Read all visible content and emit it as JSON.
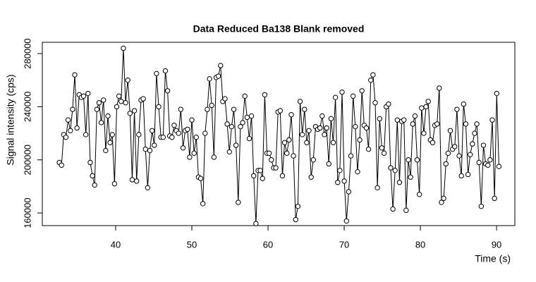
{
  "chart_data": {
    "type": "line",
    "title": "Data Reduced Ba138 Blank removed",
    "xlabel": "Time (s)",
    "ylabel": "Signal intensity (cps)",
    "color": "#000000",
    "xlim": [
      30.37,
      92.4
    ],
    "ylim": [
      150500,
      288500
    ],
    "xticks": [
      40,
      50,
      60,
      70,
      80,
      90
    ],
    "yticks": [
      160000,
      200000,
      240000,
      280000
    ],
    "x": [
      32.6,
      32.89,
      33.18,
      33.47,
      33.76,
      34.05,
      34.34,
      34.63,
      34.92,
      35.21,
      35.5,
      35.79,
      36.08,
      36.37,
      36.66,
      36.95,
      37.24,
      37.53,
      37.82,
      38.11,
      38.4,
      38.69,
      38.98,
      39.27,
      39.56,
      39.85,
      40.14,
      40.43,
      40.72,
      41.01,
      41.3,
      41.59,
      41.88,
      42.17,
      42.46,
      42.75,
      43.04,
      43.33,
      43.62,
      43.91,
      44.2,
      44.49,
      44.78,
      45.07,
      45.36,
      45.65,
      45.94,
      46.23,
      46.52,
      46.81,
      47.1,
      47.39,
      47.68,
      47.97,
      48.26,
      48.55,
      48.84,
      49.13,
      49.42,
      49.71,
      50.0,
      50.29,
      50.58,
      50.87,
      51.16,
      51.45,
      51.74,
      52.03,
      52.32,
      52.61,
      52.9,
      53.19,
      53.48,
      53.77,
      54.06,
      54.35,
      54.64,
      54.93,
      55.22,
      55.51,
      55.8,
      56.09,
      56.38,
      56.67,
      56.96,
      57.25,
      57.54,
      57.83,
      58.12,
      58.41,
      58.7,
      58.99,
      59.28,
      59.57,
      59.86,
      60.15,
      60.44,
      60.73,
      61.02,
      61.31,
      61.6,
      61.89,
      62.18,
      62.47,
      62.76,
      63.05,
      63.34,
      63.63,
      63.92,
      64.21,
      64.5,
      64.79,
      65.08,
      65.37,
      65.66,
      65.95,
      66.24,
      66.53,
      66.82,
      67.11,
      67.4,
      67.69,
      67.98,
      68.27,
      68.56,
      68.85,
      69.14,
      69.43,
      69.72,
      70.01,
      70.3,
      70.59,
      70.88,
      71.17,
      71.46,
      71.75,
      72.04,
      72.33,
      72.62,
      72.91,
      73.2,
      73.49,
      73.78,
      74.07,
      74.36,
      74.65,
      74.94,
      75.23,
      75.52,
      75.81,
      76.1,
      76.39,
      76.68,
      76.97,
      77.26,
      77.55,
      77.84,
      78.13,
      78.42,
      78.71,
      79.0,
      79.29,
      79.58,
      79.87,
      80.16,
      80.45,
      80.74,
      81.03,
      81.32,
      81.61,
      81.9,
      82.19,
      82.48,
      82.77,
      83.06,
      83.35,
      83.64,
      83.93,
      84.22,
      84.51,
      84.8,
      85.09,
      85.38,
      85.67,
      85.96,
      86.25,
      86.54,
      86.83,
      87.12,
      87.41,
      87.7,
      87.99,
      88.28,
      88.57,
      88.86,
      89.15,
      89.44,
      89.73,
      90.02,
      90.31
    ],
    "values": [
      198000,
      196000,
      219000,
      217000,
      230000,
      222000,
      238000,
      264000,
      224000,
      249000,
      247000,
      248000,
      219000,
      250000,
      198000,
      188000,
      181000,
      238000,
      243000,
      228000,
      245000,
      207000,
      233000,
      213000,
      219000,
      182000,
      240000,
      248000,
      244000,
      284000,
      243000,
      260000,
      235000,
      185000,
      237000,
      184000,
      219000,
      245000,
      246000,
      208000,
      179000,
      207000,
      222000,
      211000,
      265000,
      240000,
      217000,
      217000,
      267000,
      252000,
      218000,
      217000,
      226000,
      222000,
      220000,
      238000,
      209000,
      222000,
      223000,
      202000,
      230000,
      205000,
      217000,
      187000,
      186000,
      167000,
      220000,
      238000,
      261000,
      241000,
      202000,
      262000,
      263000,
      271000,
      244000,
      246000,
      227000,
      206000,
      225000,
      238000,
      211000,
      168000,
      225000,
      228000,
      248000,
      232000,
      216000,
      233000,
      188000,
      152000,
      192000,
      192000,
      186000,
      249000,
      205000,
      205000,
      200000,
      194000,
      194000,
      236000,
      237000,
      188000,
      213000,
      205000,
      215000,
      234000,
      203000,
      155000,
      165000,
      244000,
      219000,
      238000,
      213000,
      222000,
      187000,
      200000,
      225000,
      223000,
      224000,
      233000,
      219000,
      224000,
      197000,
      231000,
      213000,
      247000,
      183000,
      192000,
      251000,
      184000,
      154000,
      176000,
      203000,
      248000,
      225000,
      191000,
      215000,
      252000,
      226000,
      224000,
      208000,
      260000,
      264000,
      243000,
      179000,
      231000,
      209000,
      205000,
      240000,
      242000,
      194000,
      163000,
      192000,
      230000,
      183000,
      229000,
      230000,
      162000,
      200000,
      187000,
      227000,
      233000,
      200000,
      174000,
      239000,
      220000,
      240000,
      244000,
      215000,
      213000,
      226000,
      227000,
      254000,
      168000,
      171000,
      197000,
      205000,
      222000,
      208000,
      210000,
      238000,
      203000,
      188000,
      242000,
      227000,
      189000,
      204000,
      212000,
      220000,
      227000,
      198000,
      165000,
      211000,
      197000,
      196000,
      200000,
      230000,
      171000,
      250000,
      195000
    ]
  }
}
